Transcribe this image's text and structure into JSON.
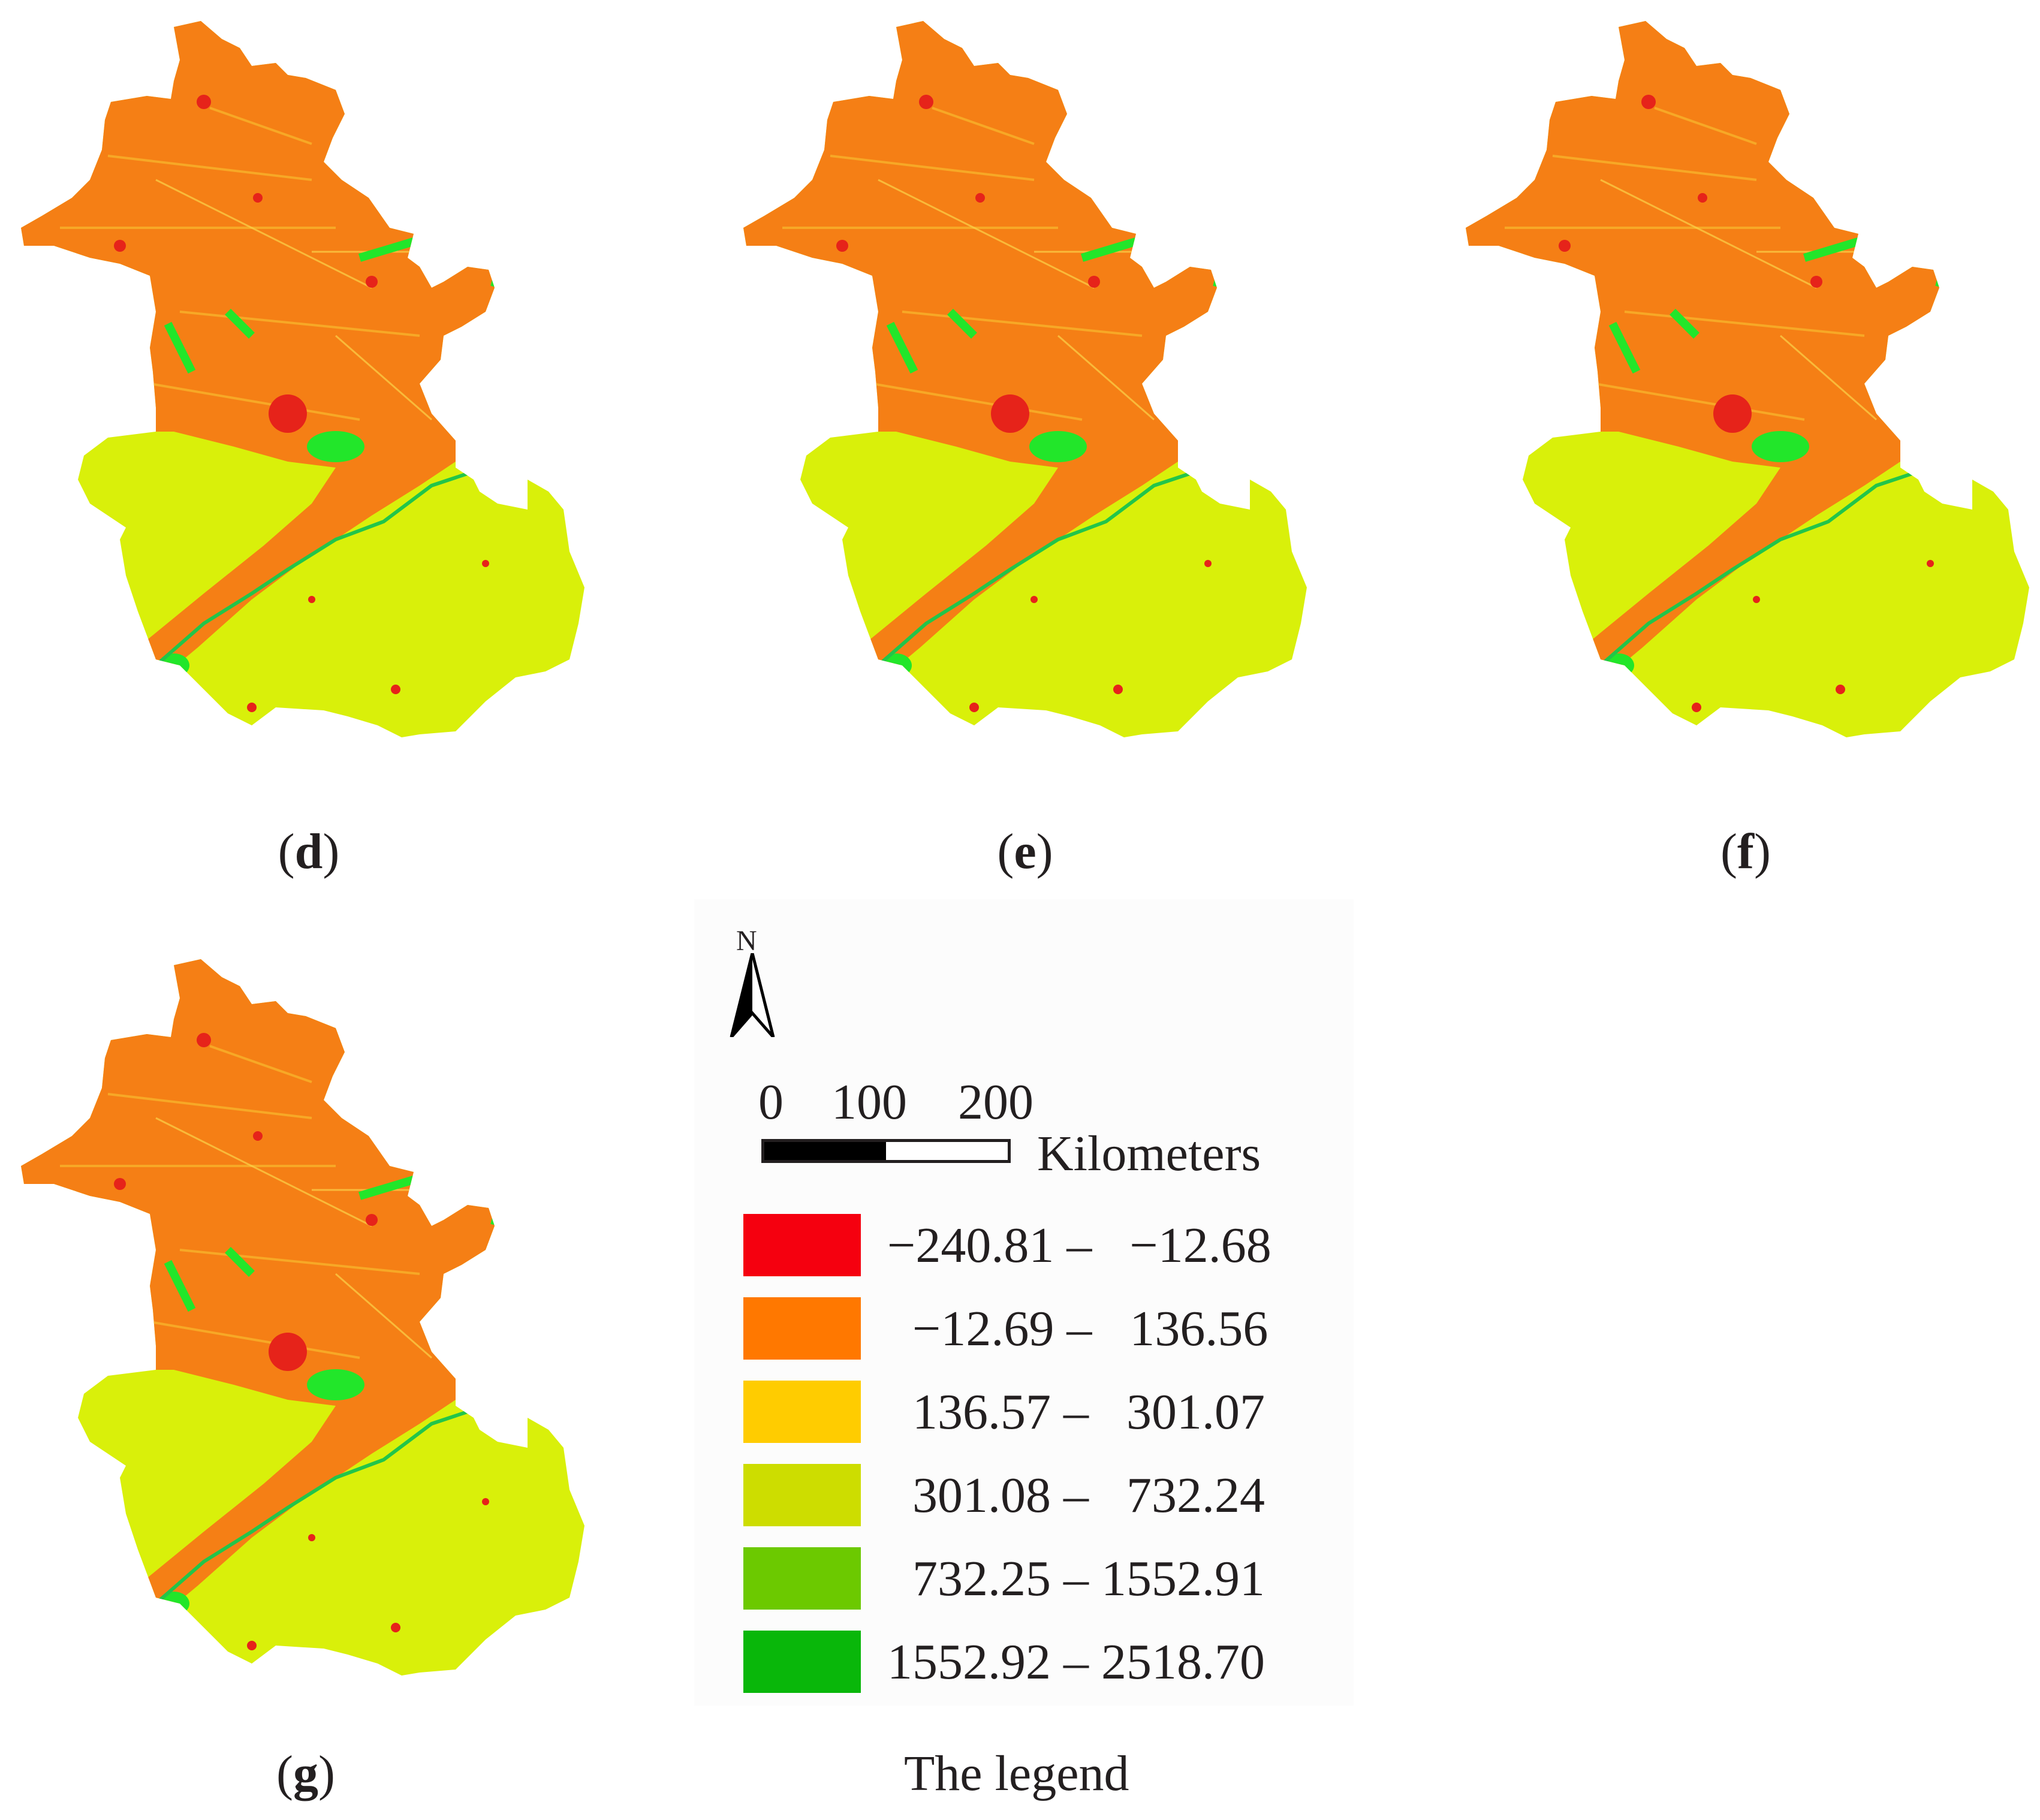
{
  "panels": [
    {
      "open": "(",
      "letter": "d",
      "close": ")"
    },
    {
      "open": "(",
      "letter": "e",
      "close": ")"
    },
    {
      "open": "(",
      "letter": "f",
      "close": ")"
    },
    {
      "open": "(",
      "letter": "g",
      "close": ")"
    }
  ],
  "north_label": "N",
  "scale": {
    "ticks": [
      "0",
      "100",
      "200"
    ],
    "unit": "Kilometers"
  },
  "legend": {
    "title": "The legend",
    "classes": [
      {
        "range": "−240.81 –   −12.68",
        "color": "#f5000f"
      },
      {
        "range": "  −12.69 –   136.56",
        "color": "#ff7800"
      },
      {
        "range": "  136.57 –   301.07",
        "color": "#ffcc00"
      },
      {
        "range": "  301.08 –   732.24",
        "color": "#cddd00"
      },
      {
        "range": "  732.25 – 1552.91",
        "color": "#6cc900"
      },
      {
        "range": "1552.92 – 2518.70",
        "color": "#09b70a"
      }
    ]
  },
  "colors": {
    "land_south": "#d9f00a",
    "land_north": "#f57f15",
    "city": "#e6231a",
    "water": "#22e62a"
  }
}
